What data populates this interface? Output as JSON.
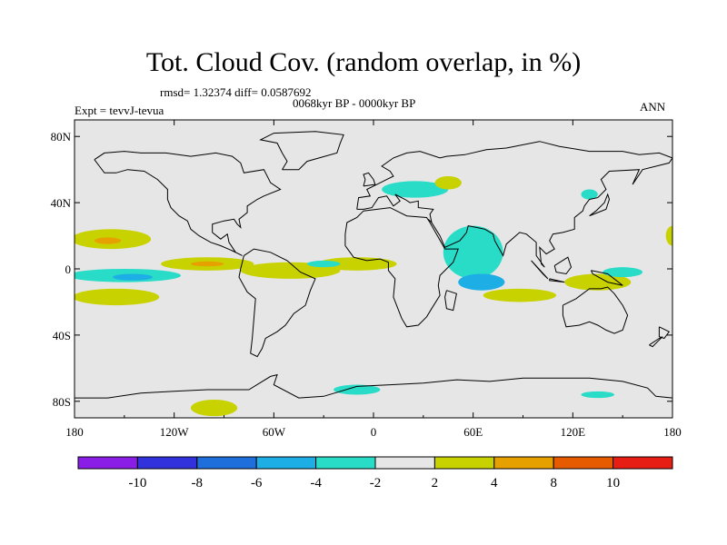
{
  "title": "Tot. Cloud Cov. (random overlap, in %)",
  "stats": "rmsd= 1.32374 diff= 0.0587692",
  "experiment": "Expt = tevvJ-tevua",
  "period": "0068kyr BP - 0000kyr BP",
  "season": "ANN",
  "x_ticks": [
    "180",
    "120W",
    "60W",
    "0",
    "60E",
    "120E",
    "180"
  ],
  "y_ticks": [
    "80N",
    "40N",
    "0",
    "40S",
    "80S"
  ],
  "colorbar": {
    "labels": [
      "-10",
      "-8",
      "-6",
      "-4",
      "-2",
      "2",
      "4",
      "8",
      "10"
    ],
    "colors": [
      "#8a1ee6",
      "#3232dc",
      "#1e6edc",
      "#1eaee6",
      "#28dcc8",
      "#e6e6e6",
      "#c8d200",
      "#e6a000",
      "#e65a00",
      "#e61e14"
    ]
  },
  "chart_data": {
    "type": "heatmap",
    "variable": "Total cloud cover difference",
    "units": "%",
    "projection": "cylindrical equidistant",
    "xlim": [
      -180,
      180
    ],
    "ylim": [
      -90,
      90
    ],
    "levels": [
      -10,
      -8,
      -6,
      -4,
      -2,
      2,
      4,
      8,
      10
    ],
    "regions": [
      {
        "lon": -158,
        "lat": 18,
        "rx": 24,
        "ry": 6,
        "level": 4
      },
      {
        "lon": -160,
        "lat": 17,
        "rx": 8,
        "ry": 2,
        "level": 8
      },
      {
        "lon": -150,
        "lat": -4,
        "rx": 34,
        "ry": 4,
        "level": -4
      },
      {
        "lon": -145,
        "lat": -5,
        "rx": 12,
        "ry": 2,
        "level": -6
      },
      {
        "lon": -155,
        "lat": -17,
        "rx": 26,
        "ry": 5,
        "level": 4
      },
      {
        "lon": -100,
        "lat": 3,
        "rx": 28,
        "ry": 4,
        "level": 4
      },
      {
        "lon": -100,
        "lat": 3,
        "rx": 10,
        "ry": 1.5,
        "level": 8
      },
      {
        "lon": -50,
        "lat": -1,
        "rx": 30,
        "ry": 5,
        "level": 4
      },
      {
        "lon": -10,
        "lat": 3,
        "rx": 24,
        "ry": 4,
        "level": 4
      },
      {
        "lon": -30,
        "lat": 3,
        "rx": 10,
        "ry": 2,
        "level": -4
      },
      {
        "lon": 25,
        "lat": 48,
        "rx": 20,
        "ry": 5,
        "level": -4
      },
      {
        "lon": 45,
        "lat": 52,
        "rx": 8,
        "ry": 4,
        "level": 4
      },
      {
        "lon": 60,
        "lat": 10,
        "rx": 18,
        "ry": 16,
        "level": -4
      },
      {
        "lon": 65,
        "lat": -8,
        "rx": 14,
        "ry": 5,
        "level": -6
      },
      {
        "lon": 88,
        "lat": -16,
        "rx": 22,
        "ry": 4,
        "level": 4
      },
      {
        "lon": 135,
        "lat": -8,
        "rx": 20,
        "ry": 5,
        "level": 4
      },
      {
        "lon": 150,
        "lat": -2,
        "rx": 12,
        "ry": 3,
        "level": -4
      },
      {
        "lon": 180,
        "lat": 20,
        "rx": 4,
        "ry": 6,
        "level": 4
      },
      {
        "lon": 130,
        "lat": 45,
        "rx": 5,
        "ry": 3,
        "level": -4
      },
      {
        "lon": -96,
        "lat": -84,
        "rx": 14,
        "ry": 5,
        "level": 4
      },
      {
        "lon": -10,
        "lat": -73,
        "rx": 14,
        "ry": 3,
        "level": -4
      },
      {
        "lon": 135,
        "lat": -76,
        "rx": 10,
        "ry": 2,
        "level": -4
      }
    ]
  }
}
